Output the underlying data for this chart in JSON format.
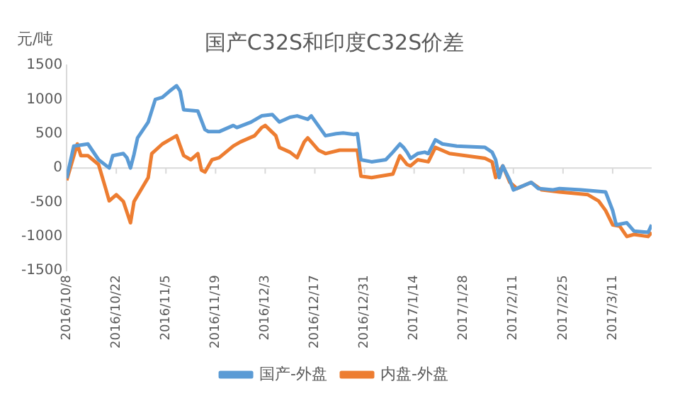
{
  "chart_data": {
    "type": "line",
    "title": "国产C32S和印度C32S价差",
    "ylabel": "元/吨",
    "xlim": [
      "2016-10-08",
      "2017-03-22"
    ],
    "xticks": [
      {
        "value": "2016-10-08",
        "label": "2016/10/8"
      },
      {
        "value": "2016-10-22",
        "label": "2016/10/22"
      },
      {
        "value": "2016-11-05",
        "label": "2016/11/5"
      },
      {
        "value": "2016-11-19",
        "label": "2016/11/19"
      },
      {
        "value": "2016-12-03",
        "label": "2016/12/3"
      },
      {
        "value": "2016-12-17",
        "label": "2016/12/17"
      },
      {
        "value": "2016-12-31",
        "label": "2016/12/31"
      },
      {
        "value": "2017-01-14",
        "label": "2017/1/14"
      },
      {
        "value": "2017-01-28",
        "label": "2017/1/28"
      },
      {
        "value": "2017-02-11",
        "label": "2017/2/11"
      },
      {
        "value": "2017-02-25",
        "label": "2017/2/25"
      },
      {
        "value": "2017-03-11",
        "label": "2017/3/11"
      }
    ],
    "ylim": [
      -1500,
      1500
    ],
    "yticks": [
      -1500,
      -1000,
      -500,
      0,
      500,
      1000,
      1500
    ],
    "grid": false,
    "ref_lines": [
      {
        "axis": "y",
        "value": 0,
        "color": "#d9d9d9"
      }
    ],
    "legend": "bottom",
    "marker": "none",
    "line_style": "solid",
    "series": [
      {
        "name": "国产-外盘",
        "color": "#5b9bd5",
        "x": [
          "2016-10-08",
          "2016-10-10",
          "2016-10-14",
          "2016-10-17",
          "2016-10-20",
          "2016-10-21",
          "2016-10-24",
          "2016-10-25",
          "2016-10-26",
          "2016-10-27",
          "2016-10-28",
          "2016-10-31",
          "2016-11-02",
          "2016-11-04",
          "2016-11-06",
          "2016-11-08",
          "2016-11-09",
          "2016-11-10",
          "2016-11-14",
          "2016-11-16",
          "2016-11-17",
          "2016-11-20",
          "2016-11-24",
          "2016-11-25",
          "2016-11-29",
          "2016-12-02",
          "2016-12-05",
          "2016-12-07",
          "2016-12-10",
          "2016-12-12",
          "2016-12-15",
          "2016-12-16",
          "2016-12-20",
          "2016-12-23",
          "2016-12-25",
          "2016-12-28",
          "2016-12-29",
          "2016-12-30",
          "2017-01-02",
          "2017-01-06",
          "2017-01-08",
          "2017-01-10",
          "2017-01-11",
          "2017-01-12",
          "2017-01-13",
          "2017-01-15",
          "2017-01-17",
          "2017-01-18",
          "2017-01-20",
          "2017-01-22",
          "2017-01-26",
          "2017-02-03",
          "2017-02-05",
          "2017-02-06",
          "2017-02-07",
          "2017-02-08",
          "2017-02-10",
          "2017-02-11",
          "2017-02-16",
          "2017-02-18",
          "2017-02-22",
          "2017-02-24",
          "2017-03-02",
          "2017-03-09",
          "2017-03-11",
          "2017-03-12",
          "2017-03-15",
          "2017-03-17",
          "2017-03-21",
          "2017-03-22"
        ],
        "values": [
          -150,
          320,
          350,
          120,
          0,
          180,
          210,
          150,
          0,
          200,
          440,
          670,
          1000,
          1030,
          1120,
          1200,
          1120,
          850,
          830,
          560,
          530,
          530,
          620,
          590,
          670,
          760,
          780,
          670,
          740,
          760,
          710,
          760,
          470,
          500,
          510,
          490,
          500,
          120,
          90,
          120,
          230,
          350,
          300,
          230,
          140,
          210,
          230,
          210,
          410,
          350,
          320,
          300,
          230,
          120,
          -140,
          30,
          -180,
          -320,
          -210,
          -300,
          -320,
          -300,
          -320,
          -350,
          -620,
          -830,
          -800,
          -920,
          -940,
          -830
        ]
      },
      {
        "name": "内盘-外盘",
        "color": "#ed7d31",
        "x": [
          "2016-10-08",
          "2016-10-11",
          "2016-10-12",
          "2016-10-14",
          "2016-10-17",
          "2016-10-19",
          "2016-10-20",
          "2016-10-22",
          "2016-10-24",
          "2016-10-26",
          "2016-10-27",
          "2016-10-31",
          "2016-11-01",
          "2016-11-04",
          "2016-11-06",
          "2016-11-08",
          "2016-11-10",
          "2016-11-12",
          "2016-11-14",
          "2016-11-15",
          "2016-11-16",
          "2016-11-18",
          "2016-11-20",
          "2016-11-24",
          "2016-11-26",
          "2016-11-30",
          "2016-12-02",
          "2016-12-03",
          "2016-12-06",
          "2016-12-07",
          "2016-12-10",
          "2016-12-12",
          "2016-12-14",
          "2016-12-15",
          "2016-12-18",
          "2016-12-20",
          "2016-12-24",
          "2016-12-29",
          "2016-12-30",
          "2017-01-02",
          "2017-01-08",
          "2017-01-10",
          "2017-01-12",
          "2017-01-13",
          "2017-01-15",
          "2017-01-18",
          "2017-01-20",
          "2017-01-24",
          "2017-02-03",
          "2017-02-05",
          "2017-02-06",
          "2017-02-08",
          "2017-02-10",
          "2017-02-12",
          "2017-02-16",
          "2017-02-19",
          "2017-02-24",
          "2017-03-04",
          "2017-03-07",
          "2017-03-09",
          "2017-03-11",
          "2017-03-13",
          "2017-03-15",
          "2017-03-17",
          "2017-03-21",
          "2017-03-22"
        ],
        "values": [
          -180,
          350,
          180,
          180,
          50,
          -300,
          -480,
          -390,
          -490,
          -800,
          -490,
          -140,
          210,
          350,
          410,
          470,
          180,
          120,
          210,
          -30,
          -60,
          120,
          150,
          320,
          380,
          470,
          590,
          620,
          470,
          300,
          230,
          150,
          380,
          440,
          260,
          210,
          260,
          260,
          -120,
          -140,
          -90,
          180,
          50,
          30,
          120,
          90,
          300,
          210,
          140,
          90,
          -140,
          30,
          -210,
          -300,
          -210,
          -320,
          -350,
          -390,
          -480,
          -620,
          -830,
          -850,
          -1000,
          -970,
          -1000,
          -940
        ]
      }
    ]
  }
}
